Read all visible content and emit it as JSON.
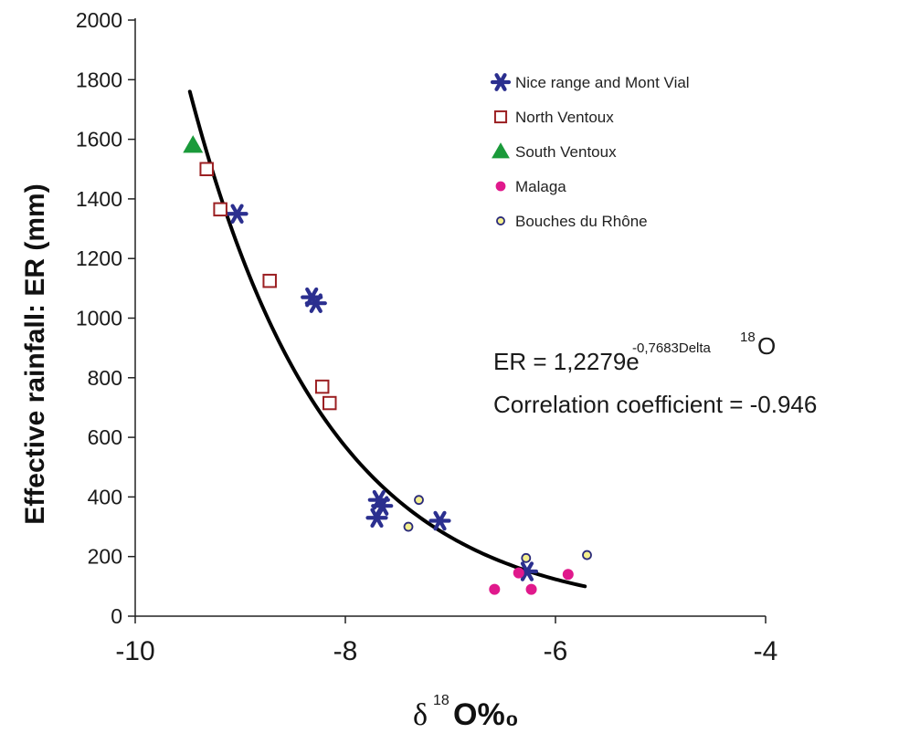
{
  "chart_data": {
    "type": "scatter",
    "xlabel_symbol": "δ",
    "xlabel_superscript": "18",
    "xlabel_main": "O%₀",
    "ylabel": "Effective rainfall: ER (mm)",
    "xlim": [
      -10,
      -4
    ],
    "ylim": [
      0,
      2000
    ],
    "x_ticks": [
      -10,
      -8,
      -6,
      -4
    ],
    "y_ticks": [
      0,
      200,
      400,
      600,
      800,
      1000,
      1200,
      1400,
      1600,
      1800,
      2000
    ],
    "grid": false,
    "legend_position": "top-right",
    "series": [
      {
        "name": "Nice range and Mont Vial",
        "marker": "star",
        "color": "#2b2f8f",
        "points": [
          [
            -9.03,
            1350
          ],
          [
            -8.32,
            1070
          ],
          [
            -8.28,
            1050
          ],
          [
            -7.68,
            390
          ],
          [
            -7.65,
            370
          ],
          [
            -7.7,
            330
          ],
          [
            -7.1,
            320
          ],
          [
            -6.27,
            150
          ]
        ]
      },
      {
        "name": "North Ventoux",
        "marker": "open-square",
        "color": "#9b1f22",
        "points": [
          [
            -9.32,
            1500
          ],
          [
            -9.19,
            1365
          ],
          [
            -8.72,
            1125
          ],
          [
            -8.22,
            770
          ],
          [
            -8.15,
            715
          ]
        ]
      },
      {
        "name": "South Ventoux",
        "marker": "triangle",
        "color": "#1a9a3a",
        "points": [
          [
            -9.45,
            1580
          ]
        ]
      },
      {
        "name": "Malaga",
        "marker": "filled-circle",
        "color": "#e0198c",
        "points": [
          [
            -6.58,
            90
          ],
          [
            -6.35,
            145
          ],
          [
            -6.23,
            90
          ],
          [
            -5.88,
            140
          ]
        ]
      },
      {
        "name": "Bouches du Rhône",
        "marker": "yellow-circle",
        "color": "#2a2a7a",
        "points": [
          [
            -7.3,
            390
          ],
          [
            -7.4,
            300
          ],
          [
            -6.28,
            195
          ],
          [
            -5.7,
            205
          ]
        ]
      }
    ],
    "fit": {
      "type": "exponential",
      "x_range": [
        -9.48,
        -5.72
      ],
      "y_start": 1760,
      "y_end": 100
    },
    "annotations": {
      "equation_prefix": "ER = 1,2279e",
      "equation_exponent": "-0,7683Delta",
      "equation_super": "18",
      "equation_suffix": "O",
      "correlation": "Correlation coefficient = -0.946"
    }
  }
}
